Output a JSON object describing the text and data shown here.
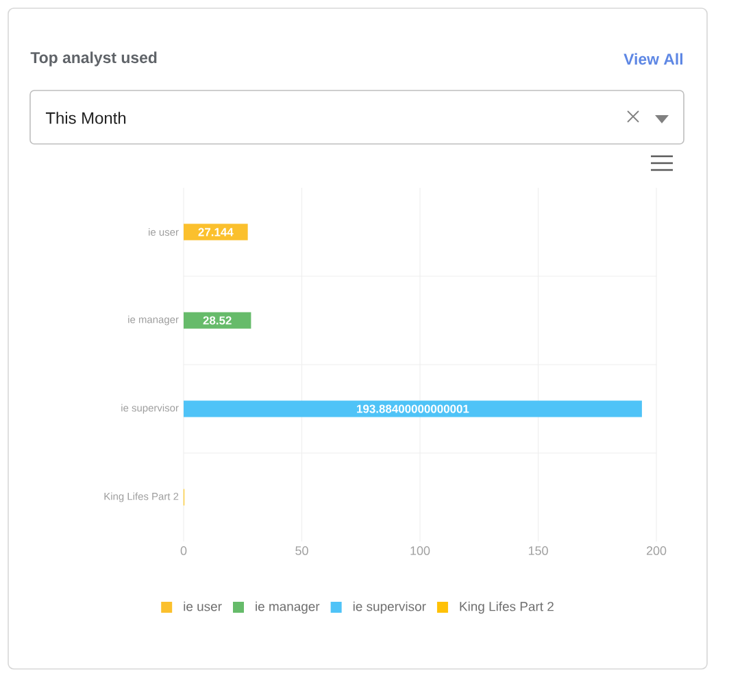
{
  "chart_data": {
    "type": "bar",
    "orientation": "horizontal",
    "title": "Top analyst used",
    "annotations": [
      "View All",
      "This Month"
    ],
    "categories": [
      "ie user",
      "ie manager",
      "ie supervisor",
      "King Lifes Part 2"
    ],
    "series": [
      {
        "name": "ie user",
        "color": "#fbc02d",
        "values": [
          27.144,
          null,
          null,
          null
        ],
        "value_labels": [
          "27.144",
          null,
          null,
          null
        ]
      },
      {
        "name": "ie manager",
        "color": "#66bb6a",
        "values": [
          null,
          28.52,
          null,
          null
        ],
        "value_labels": [
          null,
          "28.52",
          null,
          null
        ]
      },
      {
        "name": "ie supervisor",
        "color": "#4fc3f7",
        "values": [
          null,
          null,
          193.88400000000001,
          null
        ],
        "value_labels": [
          null,
          null,
          "193.88400000000001",
          null
        ]
      },
      {
        "name": "King Lifes Part 2",
        "color": "#ffc107",
        "values": [
          null,
          null,
          null,
          0.3
        ],
        "value_labels": [
          null,
          null,
          null,
          null
        ]
      }
    ],
    "xlim": [
      0,
      200
    ],
    "xticks": [
      0,
      50,
      100,
      150,
      200
    ],
    "grid": true,
    "legend": "bottom"
  }
}
